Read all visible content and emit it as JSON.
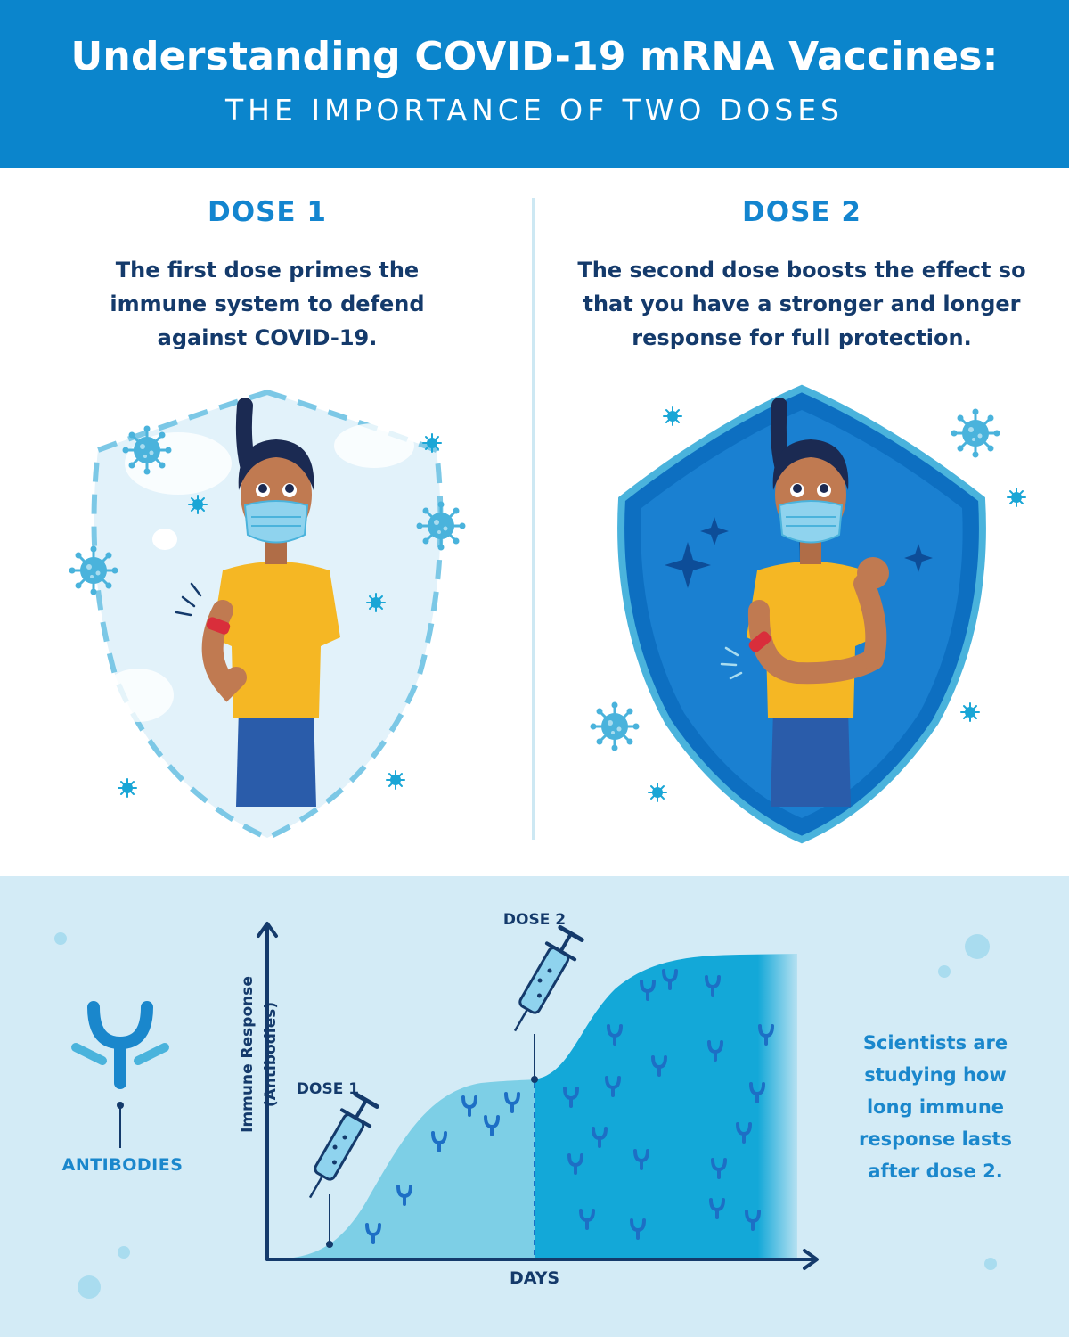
{
  "header": {
    "title": "Understanding COVID-19 mRNA Vaccines:",
    "subtitle": "THE IMPORTANCE OF TWO DOSES"
  },
  "dose1": {
    "heading": "DOSE 1",
    "lines": [
      "The first dose primes the",
      "immune system to defend",
      "against COVID-19."
    ]
  },
  "dose2": {
    "heading": "DOSE 2",
    "lines": [
      "The second dose boosts the effect so",
      "that you have a stronger and longer",
      "response for full protection."
    ]
  },
  "chart": {
    "ylabel": "Immune Response (Antibodies)",
    "xlabel": "DAYS",
    "dose1_marker": "DOSE 1",
    "dose2_marker": "DOSE 2"
  },
  "legend": {
    "antibodies": "ANTIBODIES"
  },
  "note": {
    "lines": [
      "Scientists are",
      "studying how",
      "long immune",
      "response lasts",
      "after dose 2."
    ]
  },
  "colors": {
    "header_bg": "#0b85cc",
    "accent_blue": "#1385cf",
    "navy": "#143a6b",
    "shirt_yellow": "#f5b724",
    "shield_dark": "#0d6fc1",
    "light_bg": "#d3ebf6"
  },
  "icons": [
    "virus-icon",
    "antibody-icon",
    "syringe-icon",
    "bandage-icon",
    "sparkle-icon",
    "shield-icon"
  ]
}
